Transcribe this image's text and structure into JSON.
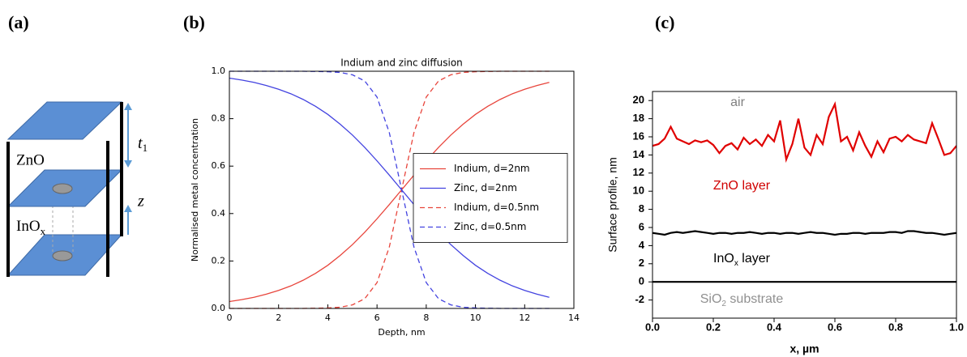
{
  "diagram": {
    "panel_label": "(a)",
    "top_layer": "ZnO",
    "bottom_layer": {
      "main": "InO",
      "sub": "x"
    },
    "thickness": {
      "main": "t",
      "sub": "1"
    },
    "depth": "z"
  },
  "chart_data": [
    {
      "type": "line",
      "panel_label": "(b)",
      "title": "Indium and zinc diffusion",
      "x_label": "Depth, nm",
      "y_label": "Normalised metal concentration",
      "x": [
        0,
        0.5,
        1,
        1.5,
        2,
        2.5,
        3,
        3.5,
        4,
        4.5,
        5,
        5.5,
        6,
        6.5,
        7,
        7.5,
        8,
        8.5,
        9,
        9.5,
        10,
        10.5,
        11,
        11.5,
        12,
        12.5,
        13
      ],
      "series": [
        {
          "name": "Indium, d=2nm",
          "color": "#e8453c",
          "linestyle": "solid",
          "values": [
            0.029,
            0.037,
            0.047,
            0.06,
            0.076,
            0.095,
            0.119,
            0.148,
            0.182,
            0.223,
            0.269,
            0.321,
            0.378,
            0.438,
            0.5,
            0.562,
            0.622,
            0.679,
            0.731,
            0.777,
            0.818,
            0.852,
            0.881,
            0.905,
            0.924,
            0.94,
            0.953
          ]
        },
        {
          "name": "Zinc, d=2nm",
          "color": "#4343e0",
          "linestyle": "solid",
          "values": [
            0.971,
            0.963,
            0.953,
            0.94,
            0.924,
            0.905,
            0.881,
            0.852,
            0.818,
            0.777,
            0.731,
            0.679,
            0.622,
            0.562,
            0.5,
            0.438,
            0.378,
            0.321,
            0.269,
            0.223,
            0.182,
            0.148,
            0.119,
            0.095,
            0.076,
            0.06,
            0.047
          ]
        },
        {
          "name": "Indium, d=0.5nm",
          "color": "#e8453c",
          "linestyle": "dashed",
          "values": [
            0,
            0,
            0,
            0,
            0,
            0,
            0,
            0.001,
            0.002,
            0.005,
            0.015,
            0.041,
            0.109,
            0.259,
            0.5,
            0.741,
            0.891,
            0.959,
            0.985,
            0.995,
            0.998,
            0.999,
            1,
            1,
            1,
            1,
            1
          ]
        },
        {
          "name": "Zinc, d=0.5nm",
          "color": "#4343e0",
          "linestyle": "dashed",
          "values": [
            1,
            1,
            1,
            1,
            1,
            1,
            1,
            0.999,
            0.998,
            0.995,
            0.985,
            0.959,
            0.891,
            0.741,
            0.5,
            0.259,
            0.109,
            0.041,
            0.015,
            0.005,
            0.002,
            0.001,
            0,
            0,
            0,
            0,
            0
          ]
        }
      ],
      "xlim": [
        0,
        14
      ],
      "xticks": [
        0,
        2,
        4,
        6,
        8,
        10,
        12,
        14
      ],
      "ylim": [
        0,
        1
      ],
      "yticks": [
        {
          "value": 0,
          "label": "0.0"
        },
        0.2,
        0.4,
        0.6,
        0.8,
        {
          "value": 1,
          "label": "1.0"
        }
      ],
      "grid": false,
      "legend": "center right"
    },
    {
      "type": "line",
      "panel_label": "(c)",
      "x_label": "x, µm",
      "y_label": "Surface profile, nm",
      "series": [
        {
          "color": "#e00000",
          "linestyle": "solid",
          "x": [
            0,
            0.02,
            0.04,
            0.06,
            0.08,
            0.1,
            0.12,
            0.14,
            0.16,
            0.18,
            0.2,
            0.22,
            0.24,
            0.26,
            0.28,
            0.3,
            0.32,
            0.34,
            0.36,
            0.38,
            0.4,
            0.42,
            0.44,
            0.46,
            0.48,
            0.5,
            0.52,
            0.54,
            0.56,
            0.58,
            0.6,
            0.62,
            0.64,
            0.66,
            0.68,
            0.7,
            0.72,
            0.74,
            0.76,
            0.78,
            0.8,
            0.82,
            0.84,
            0.86,
            0.88,
            0.9,
            0.92,
            0.94,
            0.96,
            0.98,
            1
          ],
          "values": [
            15.0,
            15.2,
            15.8,
            17.1,
            15.8,
            15.5,
            15.2,
            15.6,
            15.4,
            15.6,
            15.1,
            14.2,
            15.0,
            15.3,
            14.6,
            15.9,
            15.2,
            15.7,
            15.0,
            16.2,
            15.5,
            17.8,
            13.5,
            15.2,
            18.0,
            14.8,
            14.0,
            16.2,
            15.2,
            18.2,
            19.6,
            15.5,
            16.0,
            14.5,
            16.5,
            15.0,
            13.8,
            15.5,
            14.3,
            15.8,
            16.0,
            15.5,
            16.2,
            15.7,
            15.5,
            15.3,
            17.5,
            15.8,
            14.0,
            14.2,
            15.0
          ]
        },
        {
          "color": "#000000",
          "linestyle": "solid",
          "x": [
            0,
            0.02,
            0.04,
            0.06,
            0.08,
            0.1,
            0.12,
            0.14,
            0.16,
            0.18,
            0.2,
            0.22,
            0.24,
            0.26,
            0.28,
            0.3,
            0.32,
            0.34,
            0.36,
            0.38,
            0.4,
            0.42,
            0.44,
            0.46,
            0.48,
            0.5,
            0.52,
            0.54,
            0.56,
            0.58,
            0.6,
            0.62,
            0.64,
            0.66,
            0.68,
            0.7,
            0.72,
            0.74,
            0.76,
            0.78,
            0.8,
            0.82,
            0.84,
            0.86,
            0.88,
            0.9,
            0.92,
            0.94,
            0.96,
            0.98,
            1
          ],
          "values": [
            5.4,
            5.3,
            5.2,
            5.4,
            5.5,
            5.4,
            5.5,
            5.6,
            5.5,
            5.4,
            5.3,
            5.4,
            5.4,
            5.3,
            5.4,
            5.4,
            5.5,
            5.4,
            5.3,
            5.4,
            5.4,
            5.3,
            5.4,
            5.4,
            5.3,
            5.4,
            5.5,
            5.4,
            5.4,
            5.3,
            5.2,
            5.3,
            5.3,
            5.4,
            5.4,
            5.3,
            5.4,
            5.4,
            5.4,
            5.5,
            5.5,
            5.4,
            5.6,
            5.6,
            5.5,
            5.4,
            5.4,
            5.3,
            5.2,
            5.3,
            5.4
          ]
        },
        {
          "color": "#000000",
          "linestyle": "solid",
          "x": [
            0,
            1
          ],
          "values": [
            0,
            0
          ]
        }
      ],
      "annotations": [
        {
          "text": "air",
          "color": "#808080"
        },
        {
          "text": "ZnO layer",
          "color": "#d00000"
        },
        {
          "text": "InO",
          "sub": "x",
          "tail": " layer",
          "color": "#000000"
        },
        {
          "text": "SiO",
          "sub": "2",
          "tail": " substrate",
          "color": "#909090"
        }
      ],
      "xlim": [
        0,
        1
      ],
      "xticks": [
        {
          "value": 0,
          "label": "0.0"
        },
        0.2,
        0.4,
        0.6,
        0.8,
        {
          "value": 1,
          "label": "1.0"
        }
      ],
      "ylim": [
        -4,
        21
      ],
      "yticks": [
        -2,
        0,
        2,
        4,
        6,
        8,
        10,
        12,
        14,
        16,
        18,
        20
      ],
      "grid": false
    }
  ]
}
